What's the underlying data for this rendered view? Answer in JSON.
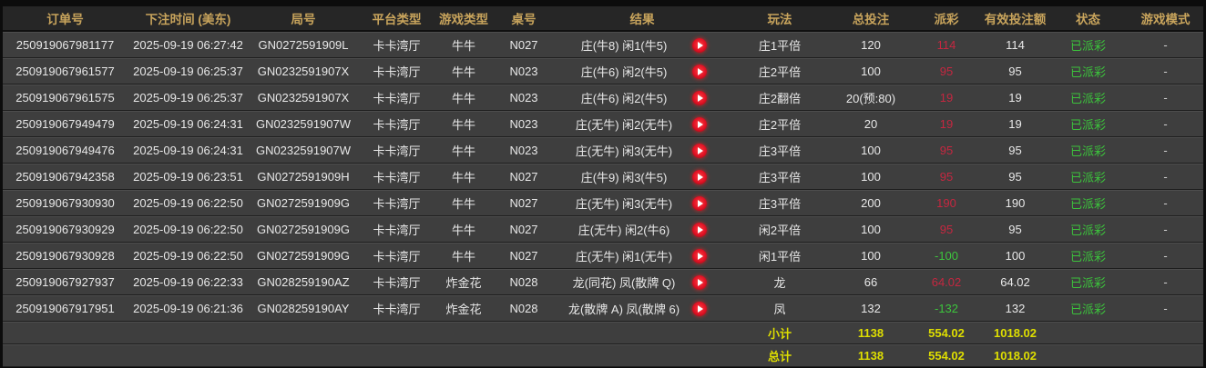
{
  "colors": {
    "header_bg": "#262626",
    "row_bg": "#3e3e3e",
    "header_text": "#c8a45c",
    "row_text": "#e8e8e8",
    "payout_win_red": "#c52740",
    "payout_loss_green": "#3dc43d",
    "status_green": "#3cc23c",
    "summary_yellow": "#dede00"
  },
  "table": {
    "columns": [
      "订单号",
      "下注时间 (美东)",
      "局号",
      "平台类型",
      "游戏类型",
      "桌号",
      "结果",
      "玩法",
      "总投注",
      "派彩",
      "有效投注额",
      "状态",
      "游戏模式"
    ],
    "icons": {
      "result_replay": "play-circle-icon"
    },
    "rows": [
      {
        "order": "250919067981177",
        "time": "2025-09-19 06:27:42",
        "round": "GN0272591909L",
        "platform": "卡卡湾厅",
        "game": "牛牛",
        "table_no": "N027",
        "result": "庄(牛8) 闲1(牛5)",
        "play": "庄1平倍",
        "bet": "120",
        "payout": "114",
        "payout_color": "red",
        "valid": "114",
        "status": "已派彩",
        "mode": "-"
      },
      {
        "order": "250919067961577",
        "time": "2025-09-19 06:25:37",
        "round": "GN0232591907X",
        "platform": "卡卡湾厅",
        "game": "牛牛",
        "table_no": "N023",
        "result": "庄(牛6) 闲2(牛5)",
        "play": "庄2平倍",
        "bet": "100",
        "payout": "95",
        "payout_color": "red",
        "valid": "95",
        "status": "已派彩",
        "mode": "-"
      },
      {
        "order": "250919067961575",
        "time": "2025-09-19 06:25:37",
        "round": "GN0232591907X",
        "platform": "卡卡湾厅",
        "game": "牛牛",
        "table_no": "N023",
        "result": "庄(牛6) 闲2(牛5)",
        "play": "庄2翻倍",
        "bet": "20(预:80)",
        "payout": "19",
        "payout_color": "red",
        "valid": "19",
        "status": "已派彩",
        "mode": "-"
      },
      {
        "order": "250919067949479",
        "time": "2025-09-19 06:24:31",
        "round": "GN0232591907W",
        "platform": "卡卡湾厅",
        "game": "牛牛",
        "table_no": "N023",
        "result": "庄(无牛) 闲2(无牛)",
        "play": "庄2平倍",
        "bet": "20",
        "payout": "19",
        "payout_color": "red",
        "valid": "19",
        "status": "已派彩",
        "mode": "-"
      },
      {
        "order": "250919067949476",
        "time": "2025-09-19 06:24:31",
        "round": "GN0232591907W",
        "platform": "卡卡湾厅",
        "game": "牛牛",
        "table_no": "N023",
        "result": "庄(无牛) 闲3(无牛)",
        "play": "庄3平倍",
        "bet": "100",
        "payout": "95",
        "payout_color": "red",
        "valid": "95",
        "status": "已派彩",
        "mode": "-"
      },
      {
        "order": "250919067942358",
        "time": "2025-09-19 06:23:51",
        "round": "GN0272591909H",
        "platform": "卡卡湾厅",
        "game": "牛牛",
        "table_no": "N027",
        "result": "庄(牛9) 闲3(牛5)",
        "play": "庄3平倍",
        "bet": "100",
        "payout": "95",
        "payout_color": "red",
        "valid": "95",
        "status": "已派彩",
        "mode": "-"
      },
      {
        "order": "250919067930930",
        "time": "2025-09-19 06:22:50",
        "round": "GN0272591909G",
        "platform": "卡卡湾厅",
        "game": "牛牛",
        "table_no": "N027",
        "result": "庄(无牛) 闲3(无牛)",
        "play": "庄3平倍",
        "bet": "200",
        "payout": "190",
        "payout_color": "red",
        "valid": "190",
        "status": "已派彩",
        "mode": "-"
      },
      {
        "order": "250919067930929",
        "time": "2025-09-19 06:22:50",
        "round": "GN0272591909G",
        "platform": "卡卡湾厅",
        "game": "牛牛",
        "table_no": "N027",
        "result": "庄(无牛) 闲2(牛6)",
        "play": "闲2平倍",
        "bet": "100",
        "payout": "95",
        "payout_color": "red",
        "valid": "95",
        "status": "已派彩",
        "mode": "-"
      },
      {
        "order": "250919067930928",
        "time": "2025-09-19 06:22:50",
        "round": "GN0272591909G",
        "platform": "卡卡湾厅",
        "game": "牛牛",
        "table_no": "N027",
        "result": "庄(无牛) 闲1(无牛)",
        "play": "闲1平倍",
        "bet": "100",
        "payout": "-100",
        "payout_color": "green",
        "valid": "100",
        "status": "已派彩",
        "mode": "-"
      },
      {
        "order": "250919067927937",
        "time": "2025-09-19 06:22:33",
        "round": "GN028259190AZ",
        "platform": "卡卡湾厅",
        "game": "炸金花",
        "table_no": "N028",
        "result": "龙(同花) 凤(散牌 Q)",
        "play": "龙",
        "bet": "66",
        "payout": "64.02",
        "payout_color": "red",
        "valid": "64.02",
        "status": "已派彩",
        "mode": "-"
      },
      {
        "order": "250919067917951",
        "time": "2025-09-19 06:21:36",
        "round": "GN028259190AY",
        "platform": "卡卡湾厅",
        "game": "炸金花",
        "table_no": "N028",
        "result": "龙(散牌 A) 凤(散牌 6)",
        "play": "凤",
        "bet": "132",
        "payout": "-132",
        "payout_color": "green",
        "valid": "132",
        "status": "已派彩",
        "mode": "-"
      }
    ],
    "subtotal": {
      "label": "小计",
      "bet": "1138",
      "payout": "554.02",
      "valid": "1018.02"
    },
    "total": {
      "label": "总计",
      "bet": "1138",
      "payout": "554.02",
      "valid": "1018.02"
    }
  }
}
